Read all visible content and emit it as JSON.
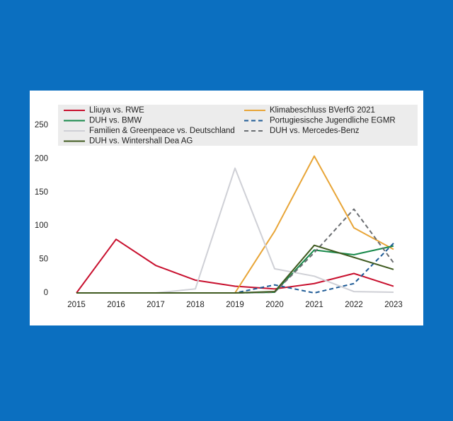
{
  "chart_data": {
    "type": "line",
    "categories": [
      "2015",
      "2016",
      "2017",
      "2018",
      "2019",
      "2020",
      "2021",
      "2022",
      "2023"
    ],
    "series": [
      {
        "name": "Lliuya vs. RWE",
        "color": "#c8102e",
        "dashed": false,
        "values": [
          0,
          80,
          41,
          19,
          10,
          6,
          14,
          29,
          10
        ]
      },
      {
        "name": "Klimabeschluss BVerfG 2021",
        "color": "#e8a537",
        "dashed": false,
        "values": [
          null,
          null,
          null,
          null,
          0,
          92,
          204,
          97,
          65
        ]
      },
      {
        "name": "DUH vs. BMW",
        "color": "#17894a",
        "dashed": false,
        "values": [
          0,
          0,
          0,
          0,
          0,
          1,
          64,
          57,
          70
        ]
      },
      {
        "name": "Portugiesische Jugendliche EGMR",
        "color": "#1f5b96",
        "dashed": true,
        "values": [
          0,
          0,
          0,
          0,
          0,
          12,
          0,
          14,
          74
        ]
      },
      {
        "name": "Familien & Greenpeace vs. Deutschland",
        "color": "#cfd0d6",
        "dashed": false,
        "values": [
          0,
          0,
          0,
          6,
          186,
          36,
          25,
          2,
          1
        ]
      },
      {
        "name": "DUH vs. Mercedes-Benz",
        "color": "#6b6e72",
        "dashed": true,
        "values": [
          0,
          0,
          0,
          0,
          0,
          1,
          60,
          125,
          45
        ]
      },
      {
        "name": "DUH vs. Wintershall Dea AG",
        "color": "#3f5a1f",
        "dashed": false,
        "values": [
          0,
          0,
          0,
          0,
          0,
          2,
          71,
          53,
          35
        ]
      }
    ],
    "ylim": [
      0,
      250
    ],
    "yticks": [
      0,
      50,
      100,
      150,
      200,
      250
    ],
    "grid": false
  }
}
